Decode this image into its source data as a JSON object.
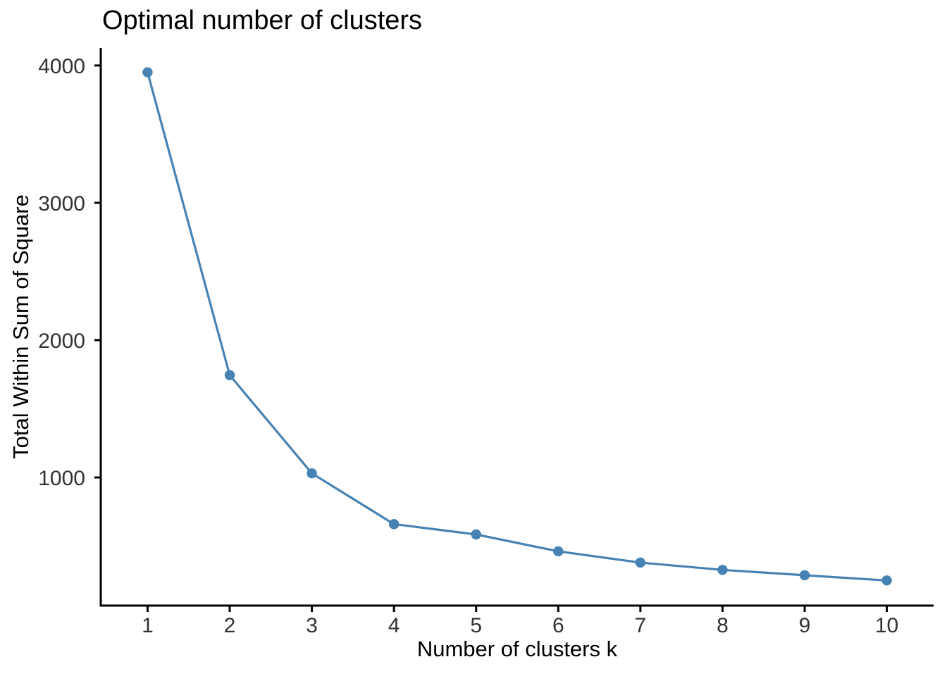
{
  "chart_data": {
    "type": "line",
    "title": "Optimal number of clusters",
    "xlabel": "Number of clusters k",
    "ylabel": "Total Within Sum of Square",
    "x": [
      1,
      2,
      3,
      4,
      5,
      6,
      7,
      8,
      9,
      10
    ],
    "series": [
      {
        "name": "Total within sum of square",
        "values": [
          3950,
          1745,
          1030,
          660,
          585,
          462,
          380,
          327,
          288,
          250
        ]
      }
    ],
    "x_tick_labels": [
      "1",
      "2",
      "3",
      "4",
      "5",
      "6",
      "7",
      "8",
      "9",
      "10"
    ],
    "y_tick_values": [
      1000,
      2000,
      3000,
      4000
    ],
    "y_tick_labels": [
      "1000",
      "2000",
      "3000",
      "4000"
    ],
    "xlim": [
      0.43,
      10.57
    ],
    "ylim": [
      67,
      4128
    ],
    "grid": false,
    "legend": "none",
    "theme": "classic",
    "line_color": "#4682B4",
    "point_color": "#4682B4",
    "axis_color": "#000000",
    "tick_label_color": "#333333",
    "title_color": "#000000"
  }
}
